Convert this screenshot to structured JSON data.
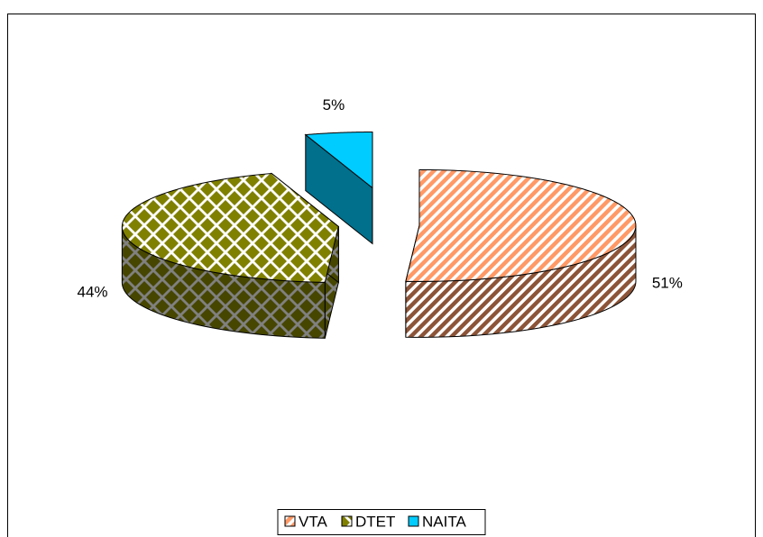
{
  "chart_data": {
    "type": "pie3d",
    "categories": [
      "VTA",
      "DTET",
      "NAITA"
    ],
    "values": [
      51,
      44,
      5
    ],
    "value_labels": [
      "51%",
      "44%",
      "5%"
    ],
    "colors": [
      "#ff9966",
      "#808000",
      "#00ccff"
    ],
    "legend": "bottom"
  }
}
